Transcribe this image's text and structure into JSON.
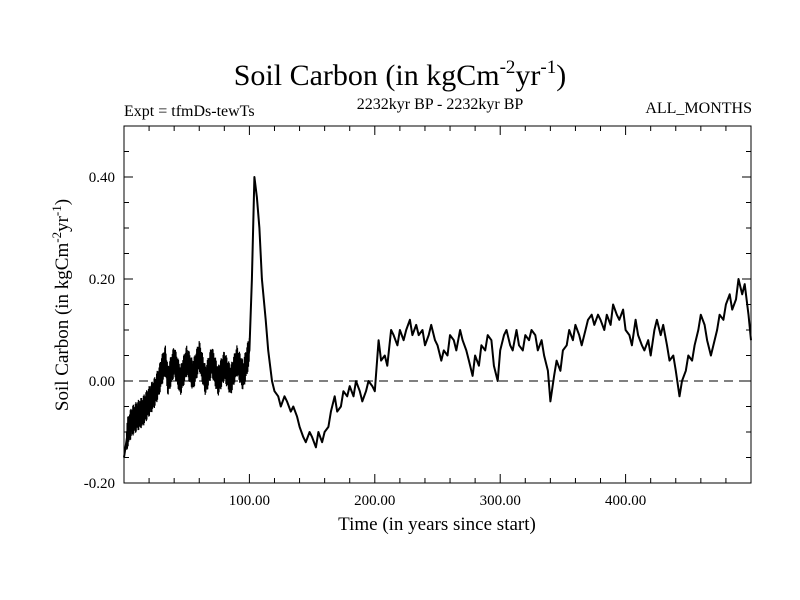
{
  "chart_data": {
    "type": "line",
    "title_main": "Soil Carbon (in kgCm",
    "title_exp1": "-2",
    "title_mid": "yr",
    "title_exp2": "-1",
    "title_end": ")",
    "subtitle_left": "Expt = tfmDs-tewTs",
    "subtitle_center": "2232kyr BP - 2232kyr BP",
    "subtitle_right": "ALL_MONTHS",
    "xlabel": "Time (in years since start)",
    "ylabel_main": "Soil Carbon (in kgCm",
    "ylabel_exp1": "-2",
    "ylabel_mid": "yr",
    "ylabel_exp2": "-1",
    "ylabel_end": ")",
    "xlim": [
      0,
      500
    ],
    "ylim": [
      -0.2,
      0.5
    ],
    "x_ticks": [
      100,
      200,
      300,
      400
    ],
    "x_tick_labels": [
      "100.00",
      "200.00",
      "300.00",
      "400.00"
    ],
    "y_ticks": [
      -0.2,
      0.0,
      0.2,
      0.4
    ],
    "y_tick_labels": [
      "-0.20",
      "0.00",
      "0.20",
      "0.40"
    ],
    "zero_line": 0.0,
    "series": [
      {
        "name": "Soil Carbon",
        "x": [
          0,
          3,
          6,
          10,
          15,
          20,
          25,
          28,
          30,
          33,
          35,
          40,
          45,
          50,
          55,
          60,
          65,
          70,
          75,
          80,
          85,
          90,
          95,
          100,
          102,
          104,
          106,
          108,
          110,
          113,
          115,
          118,
          120,
          123,
          125,
          128,
          130,
          133,
          135,
          138,
          140,
          143,
          145,
          148,
          150,
          153,
          155,
          158,
          160,
          163,
          165,
          168,
          170,
          173,
          175,
          178,
          180,
          183,
          185,
          188,
          190,
          193,
          195,
          198,
          200,
          203,
          205,
          208,
          210,
          213,
          215,
          218,
          220,
          223,
          225,
          228,
          230,
          233,
          235,
          238,
          240,
          243,
          245,
          248,
          250,
          253,
          255,
          258,
          260,
          263,
          265,
          268,
          270,
          273,
          275,
          278,
          280,
          283,
          285,
          288,
          290,
          293,
          295,
          298,
          300,
          303,
          305,
          308,
          310,
          313,
          315,
          318,
          320,
          323,
          325,
          328,
          330,
          333,
          335,
          338,
          340,
          343,
          345,
          348,
          350,
          353,
          355,
          358,
          360,
          363,
          365,
          368,
          370,
          373,
          375,
          378,
          380,
          383,
          385,
          388,
          390,
          393,
          395,
          398,
          400,
          403,
          405,
          408,
          410,
          413,
          415,
          418,
          420,
          423,
          425,
          428,
          430,
          433,
          435,
          438,
          440,
          443,
          445,
          448,
          450,
          453,
          455,
          458,
          460,
          463,
          465,
          468,
          470,
          473,
          475,
          478,
          480,
          483,
          485,
          488,
          490,
          493,
          495,
          498,
          500
        ],
        "y": [
          -0.15,
          -0.1,
          -0.08,
          -0.07,
          -0.06,
          -0.04,
          -0.02,
          0.0,
          0.02,
          0.04,
          0.0,
          0.04,
          0.0,
          0.04,
          0.01,
          0.05,
          0.0,
          0.04,
          0.0,
          0.03,
          0.0,
          0.04,
          0.01,
          0.06,
          0.2,
          0.4,
          0.36,
          0.3,
          0.2,
          0.12,
          0.06,
          0.0,
          -0.02,
          -0.03,
          -0.05,
          -0.03,
          -0.04,
          -0.06,
          -0.05,
          -0.07,
          -0.09,
          -0.11,
          -0.12,
          -0.1,
          -0.11,
          -0.13,
          -0.1,
          -0.12,
          -0.1,
          -0.09,
          -0.06,
          -0.03,
          -0.06,
          -0.05,
          -0.02,
          -0.03,
          -0.01,
          -0.03,
          0.0,
          -0.02,
          -0.04,
          -0.02,
          0.0,
          -0.01,
          -0.02,
          0.08,
          0.04,
          0.05,
          0.03,
          0.1,
          0.09,
          0.07,
          0.1,
          0.08,
          0.1,
          0.12,
          0.09,
          0.11,
          0.09,
          0.1,
          0.07,
          0.09,
          0.11,
          0.08,
          0.07,
          0.04,
          0.06,
          0.05,
          0.09,
          0.08,
          0.06,
          0.1,
          0.08,
          0.06,
          0.04,
          0.01,
          0.05,
          0.03,
          0.07,
          0.06,
          0.09,
          0.08,
          0.03,
          0.0,
          0.06,
          0.09,
          0.1,
          0.07,
          0.06,
          0.1,
          0.07,
          0.06,
          0.09,
          0.08,
          0.1,
          0.09,
          0.06,
          0.08,
          0.05,
          0.02,
          -0.04,
          0.01,
          0.04,
          0.02,
          0.06,
          0.07,
          0.1,
          0.08,
          0.11,
          0.09,
          0.07,
          0.1,
          0.12,
          0.13,
          0.11,
          0.13,
          0.12,
          0.1,
          0.13,
          0.11,
          0.15,
          0.13,
          0.12,
          0.14,
          0.1,
          0.09,
          0.07,
          0.12,
          0.09,
          0.07,
          0.06,
          0.08,
          0.05,
          0.1,
          0.12,
          0.09,
          0.11,
          0.07,
          0.04,
          0.05,
          0.02,
          -0.03,
          0.0,
          0.02,
          0.05,
          0.04,
          0.07,
          0.1,
          0.13,
          0.11,
          0.08,
          0.05,
          0.07,
          0.1,
          0.13,
          0.12,
          0.15,
          0.17,
          0.14,
          0.16,
          0.2,
          0.17,
          0.19,
          0.13,
          0.08
        ]
      }
    ],
    "noise_region": {
      "x_start": 2,
      "x_end": 100,
      "amplitude": 0.03
    }
  }
}
